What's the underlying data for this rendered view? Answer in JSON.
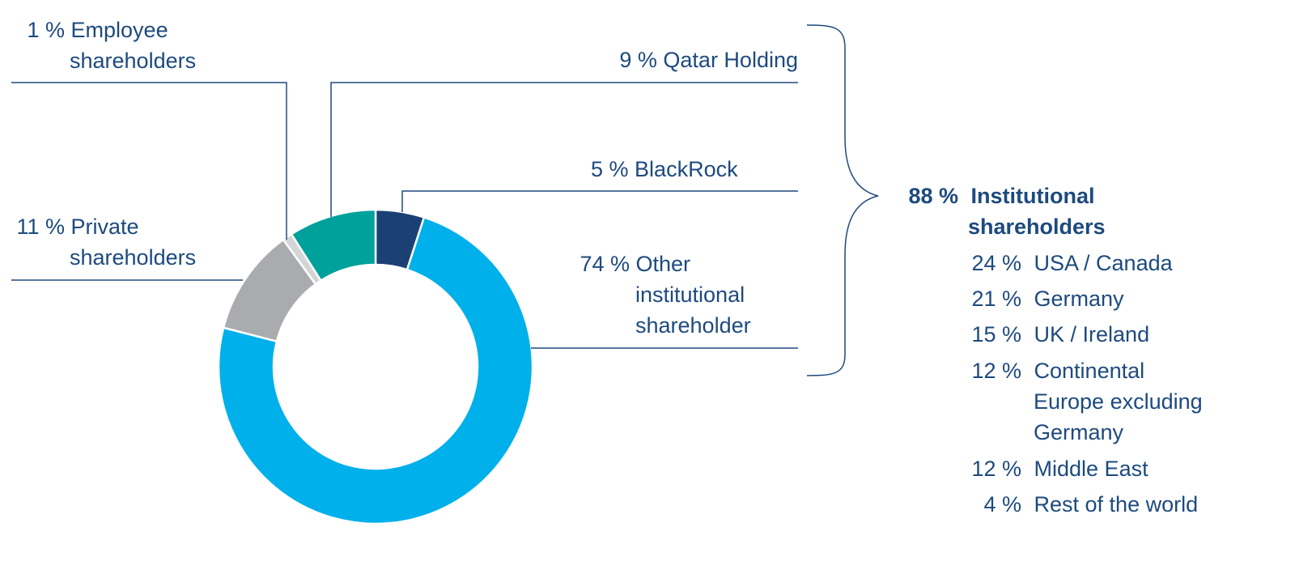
{
  "chart_data": {
    "type": "pie",
    "subtype": "donut",
    "title": "",
    "slices": [
      {
        "label": "BlackRock",
        "value": 5,
        "color": "#1b4174"
      },
      {
        "label": "Other institutional shareholder",
        "value": 74,
        "color": "#00b0ea"
      },
      {
        "label": "Private shareholders",
        "value": 11,
        "color": "#a9abae"
      },
      {
        "label": "Employee shareholders",
        "value": 1,
        "color": "#d4d5d7"
      },
      {
        "label": "Qatar Holding",
        "value": 9,
        "color": "#00a09b"
      }
    ],
    "group": {
      "label": "Institutional shareholders",
      "value": 88,
      "members": [
        "Qatar Holding",
        "BlackRock",
        "Other institutional shareholder"
      ],
      "breakdown": [
        {
          "label": "USA / Canada",
          "value": 24
        },
        {
          "label": "Germany",
          "value": 21
        },
        {
          "label": "UK / Ireland",
          "value": 15
        },
        {
          "label": "Continental Europe excluding Germany",
          "value": 12
        },
        {
          "label": "Middle East",
          "value": 12
        },
        {
          "label": "Rest of the world",
          "value": 4
        }
      ]
    }
  },
  "labels": {
    "employee": {
      "pct": "1 %",
      "line1": "Employee",
      "line2": "shareholders"
    },
    "private": {
      "pct": "11 %",
      "line1": "Private",
      "line2": "shareholders"
    },
    "qatar": {
      "pct": "9 %",
      "text": "Qatar Holding"
    },
    "blackrock": {
      "pct": "5 %",
      "text": "BlackRock"
    },
    "other": {
      "pct": "74 %",
      "line1": "Other",
      "line2": "institutional",
      "line3": "shareholder"
    },
    "institutional": {
      "pct": "88 %",
      "line1": "Institutional",
      "line2": "shareholders"
    },
    "regions": [
      {
        "pct": "24 %",
        "line1": "USA / Canada"
      },
      {
        "pct": "21 %",
        "line1": "Germany"
      },
      {
        "pct": "15 %",
        "line1": "UK / Ireland"
      },
      {
        "pct": "12 %",
        "line1": "Continental",
        "line2": "Europe excluding",
        "line3": "Germany"
      },
      {
        "pct": "12 %",
        "line1": "Middle East"
      },
      {
        "pct": "4 %",
        "line1": "Rest of the world"
      }
    ]
  },
  "colors": {
    "text": "#1d4a7e",
    "line": "#1d4a7e"
  }
}
